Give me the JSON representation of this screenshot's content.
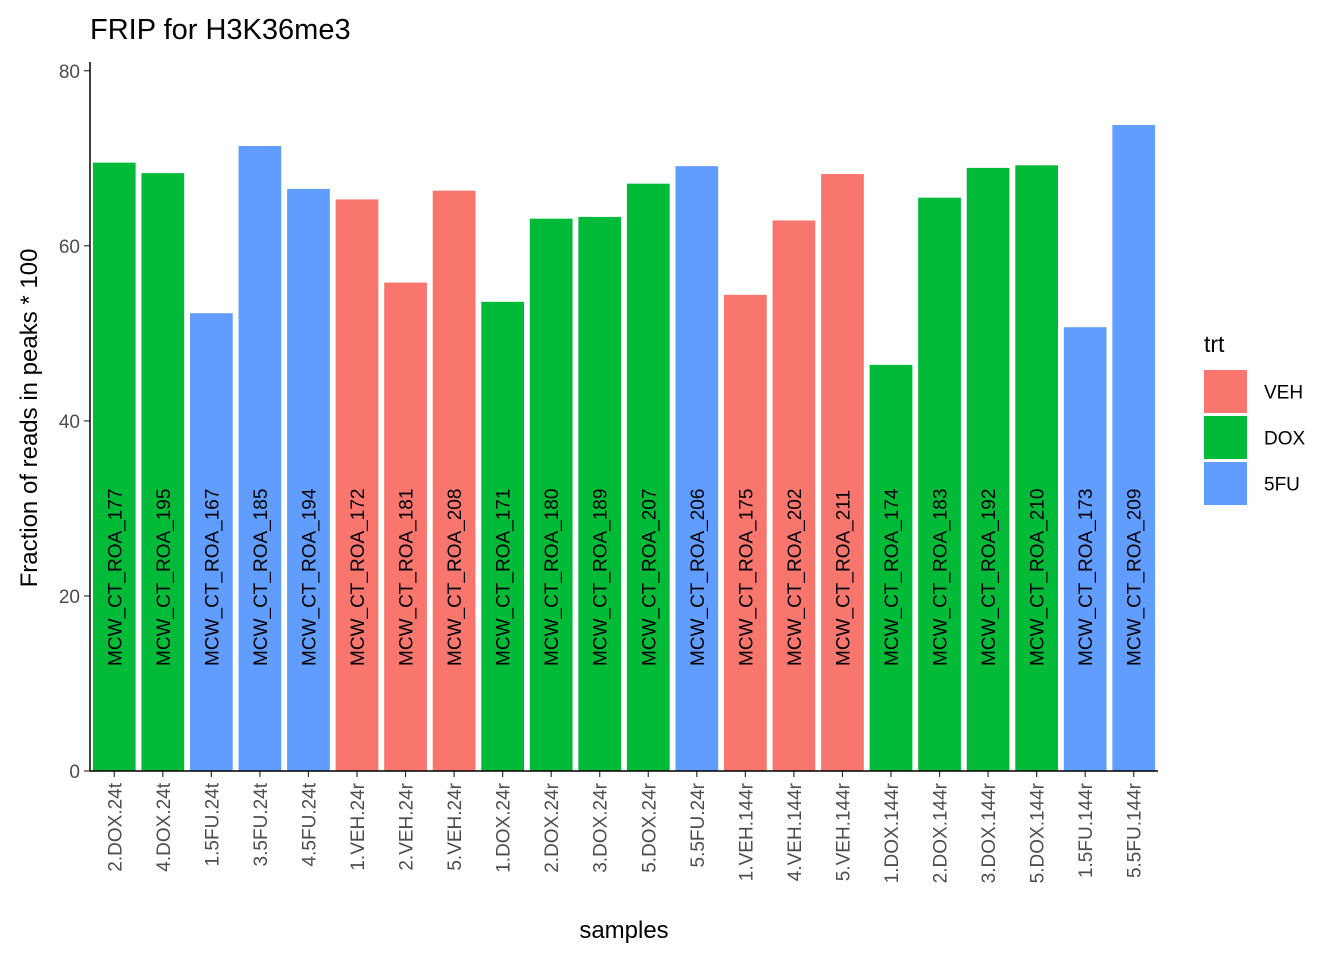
{
  "chart_data": {
    "type": "bar",
    "title": "FRIP for H3K36me3",
    "xlabel": "samples",
    "ylabel": "Fraction of reads in peaks * 100",
    "ylim": [
      0,
      81
    ],
    "yticks": [
      0,
      20,
      40,
      60,
      80
    ],
    "grid": false,
    "legend": {
      "title": "trt",
      "position": "right",
      "entries": [
        {
          "name": "VEH",
          "color": "#F8766D"
        },
        {
          "name": "DOX",
          "color": "#00BA38"
        },
        {
          "name": "5FU",
          "color": "#619CFF"
        }
      ]
    },
    "bars": [
      {
        "category": "2.DOX.24t",
        "value": 69.5,
        "trt": "DOX",
        "label": "MCW_CT_ROA_177"
      },
      {
        "category": "4.DOX.24t",
        "value": 68.3,
        "trt": "DOX",
        "label": "MCW_CT_ROA_195"
      },
      {
        "category": "1.5FU.24t",
        "value": 52.3,
        "trt": "5FU",
        "label": "MCW_CT_ROA_167"
      },
      {
        "category": "3.5FU.24t",
        "value": 71.4,
        "trt": "5FU",
        "label": "MCW_CT_ROA_185"
      },
      {
        "category": "4.5FU.24t",
        "value": 66.5,
        "trt": "5FU",
        "label": "MCW_CT_ROA_194"
      },
      {
        "category": "1.VEH.24r",
        "value": 65.3,
        "trt": "VEH",
        "label": "MCW_CT_ROA_172"
      },
      {
        "category": "2.VEH.24r",
        "value": 55.8,
        "trt": "VEH",
        "label": "MCW_CT_ROA_181"
      },
      {
        "category": "5.VEH.24r",
        "value": 66.3,
        "trt": "VEH",
        "label": "MCW_CT_ROA_208"
      },
      {
        "category": "1.DOX.24r",
        "value": 53.6,
        "trt": "DOX",
        "label": "MCW_CT_ROA_171"
      },
      {
        "category": "2.DOX.24r",
        "value": 63.1,
        "trt": "DOX",
        "label": "MCW_CT_ROA_180"
      },
      {
        "category": "3.DOX.24r",
        "value": 63.3,
        "trt": "DOX",
        "label": "MCW_CT_ROA_189"
      },
      {
        "category": "5.DOX.24r",
        "value": 67.1,
        "trt": "DOX",
        "label": "MCW_CT_ROA_207"
      },
      {
        "category": "5.5FU.24r",
        "value": 69.1,
        "trt": "5FU",
        "label": "MCW_CT_ROA_206"
      },
      {
        "category": "1.VEH.144r",
        "value": 54.4,
        "trt": "VEH",
        "label": "MCW_CT_ROA_175"
      },
      {
        "category": "4.VEH.144r",
        "value": 62.9,
        "trt": "VEH",
        "label": "MCW_CT_ROA_202"
      },
      {
        "category": "5.VEH.144r",
        "value": 68.2,
        "trt": "VEH",
        "label": "MCW_CT_ROA_211"
      },
      {
        "category": "1.DOX.144r",
        "value": 46.4,
        "trt": "DOX",
        "label": "MCW_CT_ROA_174"
      },
      {
        "category": "2.DOX.144r",
        "value": 65.5,
        "trt": "DOX",
        "label": "MCW_CT_ROA_183"
      },
      {
        "category": "3.DOX.144r",
        "value": 68.9,
        "trt": "DOX",
        "label": "MCW_CT_ROA_192"
      },
      {
        "category": "5.DOX.144r",
        "value": 69.2,
        "trt": "DOX",
        "label": "MCW_CT_ROA_210"
      },
      {
        "category": "1.5FU.144r",
        "value": 50.7,
        "trt": "5FU",
        "label": "MCW_CT_ROA_173"
      },
      {
        "category": "5.5FU.144r",
        "value": 73.8,
        "trt": "5FU",
        "label": "MCW_CT_ROA_209"
      }
    ]
  }
}
